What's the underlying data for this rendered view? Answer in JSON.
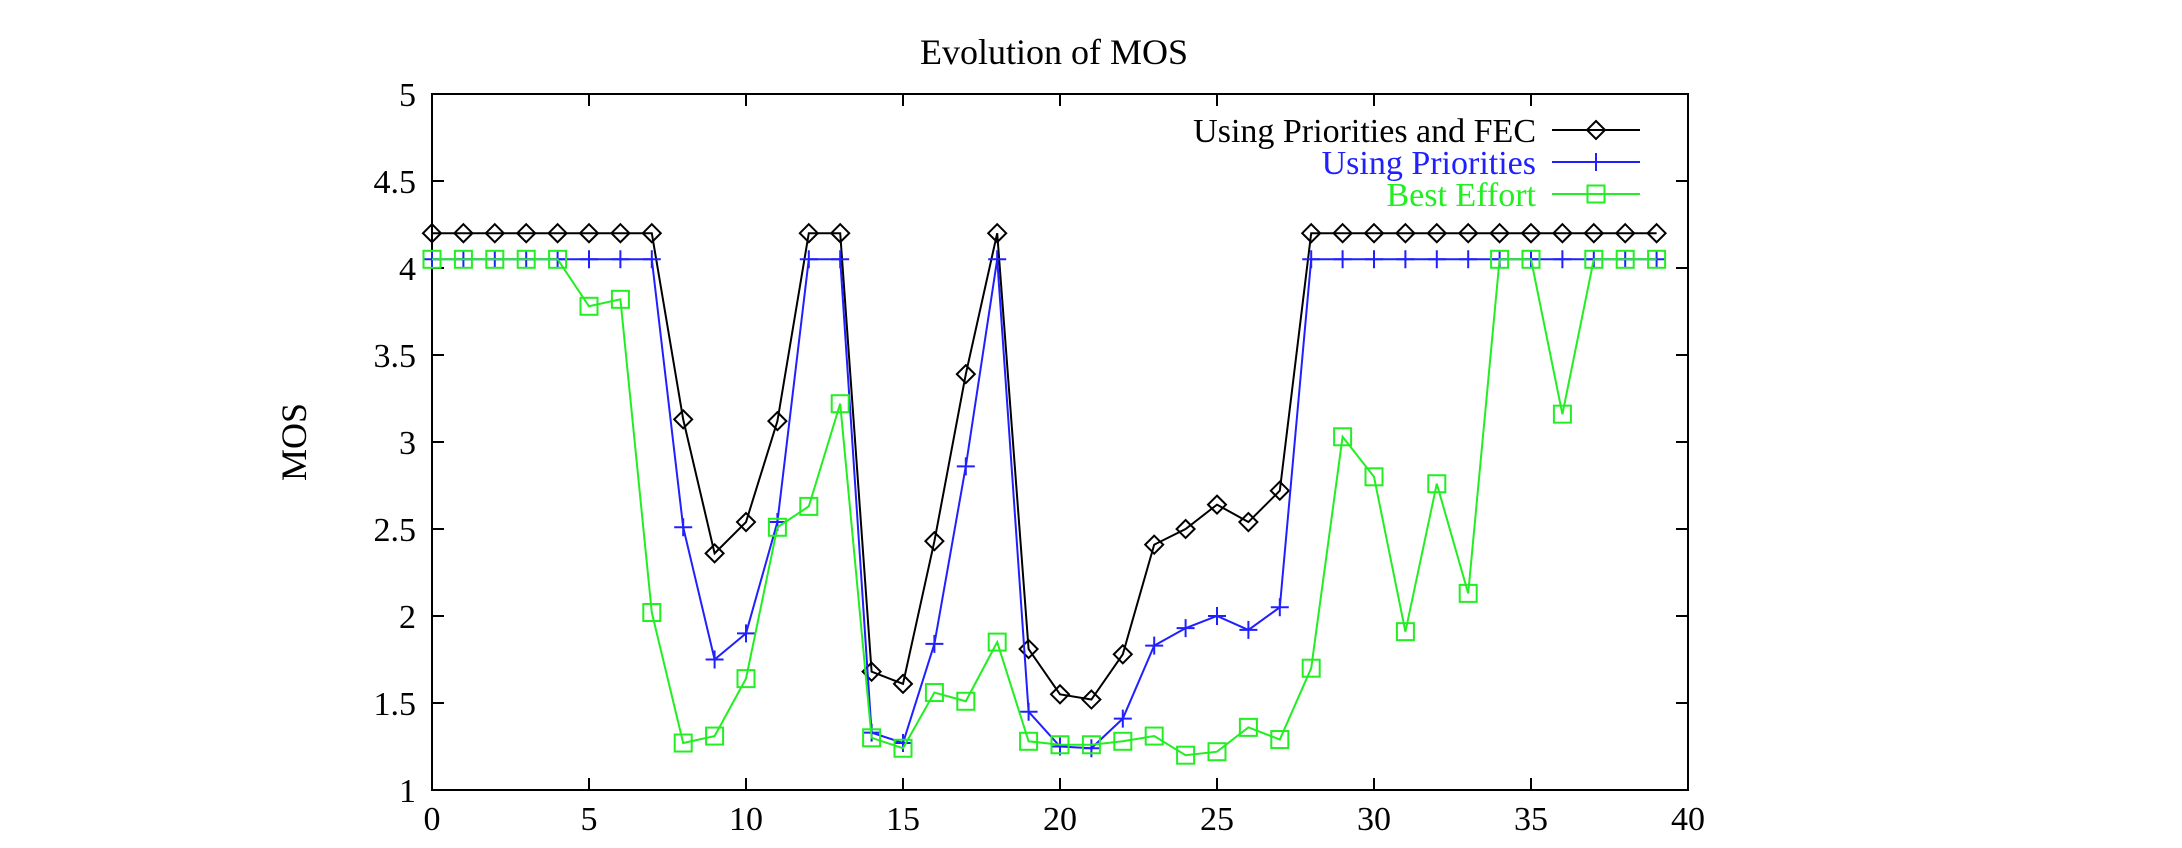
{
  "chart_data": {
    "type": "line",
    "title": "Evolution of MOS",
    "xlabel": "",
    "ylabel": "MOS",
    "xlim": [
      0,
      40
    ],
    "ylim": [
      1,
      5
    ],
    "xticks": [
      0,
      5,
      10,
      15,
      20,
      25,
      30,
      35,
      40
    ],
    "yticks": [
      1,
      1.5,
      2,
      2.5,
      3,
      3.5,
      4,
      4.5,
      5
    ],
    "xtick_labels": [
      "0",
      "5",
      "10",
      "15",
      "20",
      "25",
      "30",
      "35",
      "40"
    ],
    "ytick_labels": [
      "1",
      "1.5",
      "2",
      "2.5",
      "3",
      "3.5",
      "4",
      "4.5",
      "5"
    ],
    "grid": false,
    "legend_position": "top-right",
    "x": [
      0,
      1,
      2,
      3,
      4,
      5,
      6,
      7,
      8,
      9,
      10,
      11,
      12,
      13,
      14,
      15,
      16,
      17,
      18,
      19,
      20,
      21,
      22,
      23,
      24,
      25,
      26,
      27,
      28,
      29,
      30,
      31,
      32,
      33,
      34,
      35,
      36,
      37,
      38,
      39
    ],
    "series": [
      {
        "name": "Using Priorities and FEC",
        "color": "#000000",
        "marker": "diamond",
        "values": [
          4.2,
          4.2,
          4.2,
          4.2,
          4.2,
          4.2,
          4.2,
          4.2,
          3.13,
          2.36,
          2.54,
          3.12,
          4.2,
          4.2,
          1.68,
          1.61,
          2.43,
          3.39,
          4.2,
          1.81,
          1.55,
          1.52,
          1.78,
          2.41,
          2.5,
          2.64,
          2.54,
          2.72,
          4.2,
          4.2,
          4.2,
          4.2,
          4.2,
          4.2,
          4.2,
          4.2,
          4.2,
          4.2,
          4.2,
          4.2
        ]
      },
      {
        "name": "Using Priorities",
        "color": "#2020ff",
        "marker": "plus",
        "values": [
          4.05,
          4.05,
          4.05,
          4.05,
          4.05,
          4.05,
          4.05,
          4.05,
          2.51,
          1.75,
          1.9,
          2.54,
          4.05,
          4.05,
          1.33,
          1.27,
          1.84,
          2.86,
          4.05,
          1.45,
          1.25,
          1.24,
          1.41,
          1.83,
          1.93,
          2.0,
          1.92,
          2.05,
          4.05,
          4.05,
          4.05,
          4.05,
          4.05,
          4.05,
          4.05,
          4.05,
          4.05,
          4.05,
          4.05,
          4.05
        ]
      },
      {
        "name": "Best Effort",
        "color": "#22ee22",
        "marker": "square",
        "values": [
          4.05,
          4.05,
          4.05,
          4.05,
          4.05,
          3.78,
          3.82,
          2.02,
          1.27,
          1.31,
          1.64,
          2.51,
          2.63,
          3.22,
          1.3,
          1.24,
          1.56,
          1.51,
          1.85,
          1.28,
          1.26,
          1.26,
          1.28,
          1.31,
          1.2,
          1.22,
          1.36,
          1.29,
          1.7,
          3.03,
          2.8,
          1.91,
          2.76,
          2.13,
          4.05,
          4.05,
          3.16,
          4.05,
          4.05,
          4.05
        ]
      }
    ]
  }
}
